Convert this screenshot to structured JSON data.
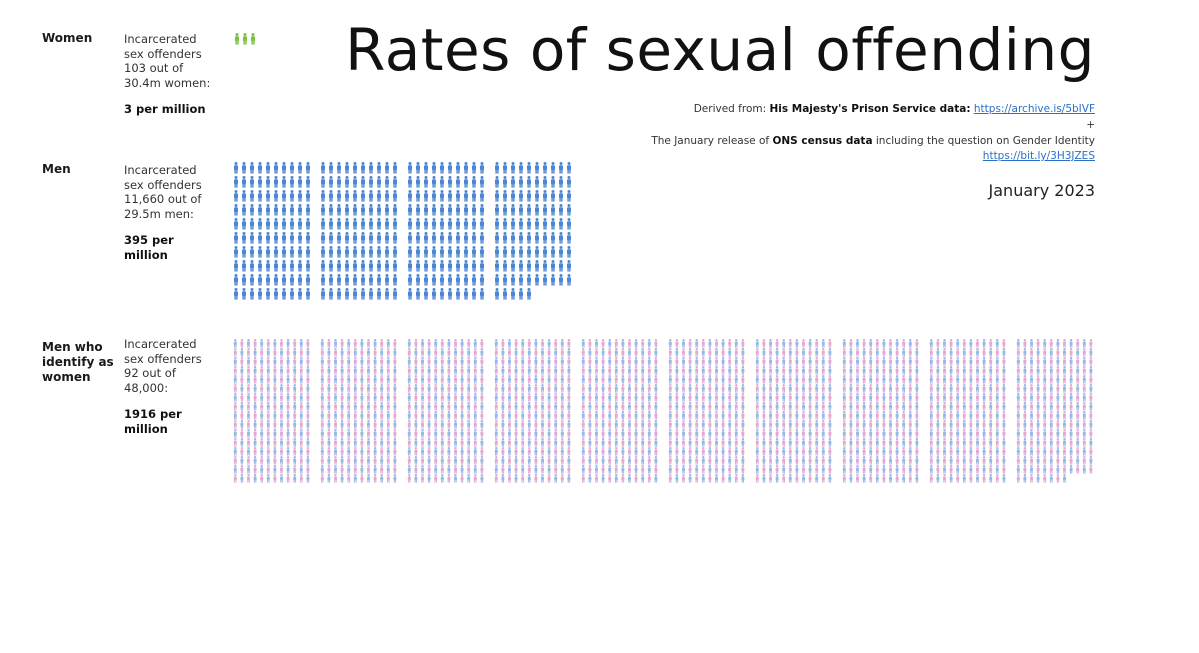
{
  "title": "Rates of sexual offending",
  "source": {
    "derived_prefix": "Derived from: ",
    "prison_label": "His Majesty's Prison Service data:",
    "prison_link": "https://archive.is/5bIVF",
    "plus": "+",
    "census_prefix": "The January release of ",
    "census_bold": "ONS census data",
    "census_suffix": " including the question on Gender Identity",
    "census_link": "https://bit.ly/3H3JZES"
  },
  "date": "January 2023",
  "groups": [
    {
      "label": "Women",
      "text": "Incarcerated sex offenders 103 out of 30.4m women:",
      "rate": "3 per million"
    },
    {
      "label": "Men",
      "text": "Incarcerated sex offenders 11,660 out of 29.5m men:",
      "rate": "395 per million"
    },
    {
      "label": "Men who identify as women",
      "text": "Incarcerated sex offenders 92 out of 48,000:",
      "rate": "1916 per million"
    }
  ],
  "colors": {
    "women": "#7cc242",
    "men": "#4a86d4",
    "trans_blue": "#9ab7e6",
    "trans_pink": "#e2a9d1"
  },
  "chart_data": {
    "type": "pictogram",
    "categories": [
      "Women",
      "Men",
      "Men who identify as women"
    ],
    "values": [
      3,
      395,
      1916
    ],
    "unit": "per million"
  }
}
